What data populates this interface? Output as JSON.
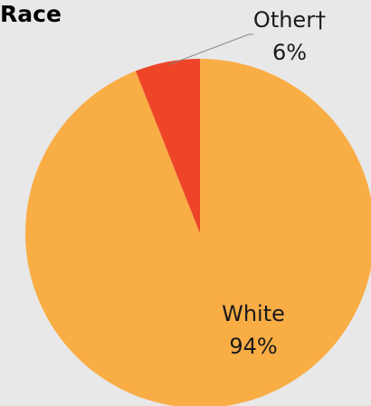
{
  "chart_data": {
    "type": "pie",
    "title": "Race",
    "slices": [
      {
        "name": "White",
        "value": 94,
        "label": "94%",
        "color": "#f9ad45"
      },
      {
        "name": "Other†",
        "value": 6,
        "label": "6%",
        "color": "#ee4528"
      }
    ],
    "legend": "none",
    "label_placement": "on-slice, Other† with leader line"
  }
}
